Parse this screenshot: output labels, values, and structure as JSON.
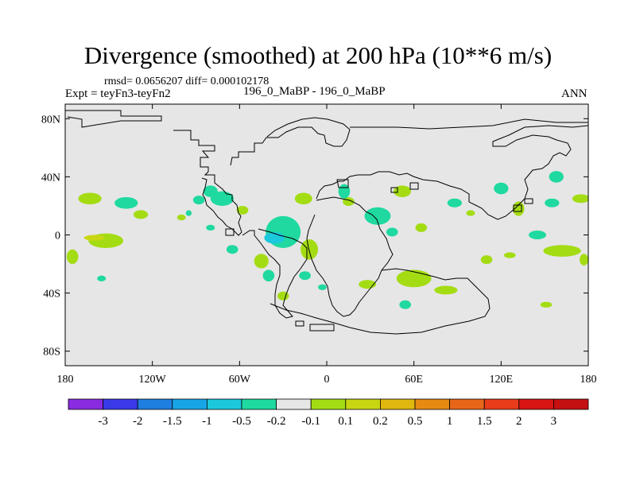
{
  "chart_data": {
    "type": "contour-map",
    "title": "Divergence (smoothed) at 200 hPa (10**6 m/s)",
    "stats": "rmsd= 0.0656207 diff= 0.000102178",
    "left_label": "Expt = teyFn3-teyFn2",
    "center_label": "196_0_MaBP - 196_0_MaBP",
    "right_label": "ANN",
    "lon_range": [
      -180,
      180
    ],
    "lat_range": [
      -90,
      90
    ],
    "x_ticks": [
      {
        "value": -180,
        "label": "180"
      },
      {
        "value": -120,
        "label": "120W"
      },
      {
        "value": -60,
        "label": "60W"
      },
      {
        "value": 0,
        "label": "0"
      },
      {
        "value": 60,
        "label": "60E"
      },
      {
        "value": 120,
        "label": "120E"
      },
      {
        "value": 180,
        "label": "180"
      }
    ],
    "y_ticks": [
      {
        "value": 80,
        "label": "80N"
      },
      {
        "value": 40,
        "label": "40N"
      },
      {
        "value": 0,
        "label": "0"
      },
      {
        "value": -40,
        "label": "40S"
      },
      {
        "value": -80,
        "label": "80S"
      }
    ],
    "colorbar": {
      "colors": [
        "#8a2be2",
        "#3a3ae8",
        "#1f7fe0",
        "#18a5e8",
        "#1cc8dc",
        "#1fd9a0",
        "#e6e6e6",
        "#a4dc14",
        "#c8d614",
        "#e0b70e",
        "#e68a12",
        "#e8661a",
        "#e83c1a",
        "#d81414"
      ],
      "labels": [
        "-3",
        "-2",
        "-1.5",
        "-1",
        "-0.5",
        "-0.2",
        "-0.1",
        "0.1",
        "0.2",
        "0.5",
        "1",
        "1.5",
        "2",
        "3"
      ]
    },
    "background_value_color": "#e6e6e6",
    "coastline_color": "#000000",
    "regions": [
      {
        "level": 0.2,
        "lon": -163,
        "lat": 25,
        "rlon": 8,
        "rlat": 4
      },
      {
        "level": 0.2,
        "lon": -128,
        "lat": 14,
        "rlon": 5,
        "rlat": 3
      },
      {
        "level": 0.2,
        "lon": -152,
        "lat": -4,
        "rlon": 12,
        "rlat": 5
      },
      {
        "level": 0.5,
        "lon": -160,
        "lat": -2,
        "rlon": 7,
        "rlat": 2
      },
      {
        "level": 0.2,
        "lon": -175,
        "lat": -15,
        "rlon": 4,
        "rlat": 5
      },
      {
        "level": -0.2,
        "lon": -155,
        "lat": -30,
        "rlon": 3,
        "rlat": 2
      },
      {
        "level": -0.2,
        "lon": -138,
        "lat": 22,
        "rlon": 8,
        "rlat": 4
      },
      {
        "level": -0.2,
        "lon": -80,
        "lat": 30,
        "rlon": 5,
        "rlat": 4
      },
      {
        "level": -0.2,
        "lon": -72,
        "lat": 25,
        "rlon": 8,
        "rlat": 5
      },
      {
        "level": -0.2,
        "lon": -88,
        "lat": 24,
        "rlon": 4,
        "rlat": 3
      },
      {
        "level": 0.2,
        "lon": -58,
        "lat": 17,
        "rlon": 4,
        "rlat": 3
      },
      {
        "level": -0.2,
        "lon": -80,
        "lat": 5,
        "rlon": 3,
        "rlat": 2
      },
      {
        "level": -0.2,
        "lon": -65,
        "lat": -10,
        "rlon": 4,
        "rlat": 3
      },
      {
        "level": -0.2,
        "lon": -30,
        "lat": 2,
        "rlon": 12,
        "rlat": 11
      },
      {
        "level": -0.5,
        "lon": -36,
        "lat": -2,
        "rlon": 7,
        "rlat": 4
      },
      {
        "level": 0.2,
        "lon": -12,
        "lat": -10,
        "rlon": 6,
        "rlat": 7
      },
      {
        "level": 0.2,
        "lon": -45,
        "lat": -18,
        "rlon": 5,
        "rlat": 5
      },
      {
        "level": -0.2,
        "lon": -40,
        "lat": -28,
        "rlon": 4,
        "rlat": 4
      },
      {
        "level": -0.2,
        "lon": -15,
        "lat": -28,
        "rlon": 4,
        "rlat": 3
      },
      {
        "level": 0.2,
        "lon": -30,
        "lat": -42,
        "rlon": 4,
        "rlat": 3
      },
      {
        "level": -0.2,
        "lon": -3,
        "lat": -36,
        "rlon": 3,
        "rlat": 2
      },
      {
        "level": 0.2,
        "lon": -16,
        "lat": 25,
        "rlon": 6,
        "rlat": 4
      },
      {
        "level": 0.2,
        "lon": 15,
        "lat": 23,
        "rlon": 4,
        "rlat": 3
      },
      {
        "level": -0.2,
        "lon": 12,
        "lat": 30,
        "rlon": 4,
        "rlat": 5
      },
      {
        "level": -0.2,
        "lon": 35,
        "lat": 13,
        "rlon": 9,
        "rlat": 6
      },
      {
        "level": 0.2,
        "lon": 52,
        "lat": 30,
        "rlon": 6,
        "rlat": 4
      },
      {
        "level": -0.2,
        "lon": 45,
        "lat": 2,
        "rlon": 4,
        "rlat": 3
      },
      {
        "level": 0.2,
        "lon": 65,
        "lat": 5,
        "rlon": 4,
        "rlat": 3
      },
      {
        "level": 0.2,
        "lon": 60,
        "lat": -30,
        "rlon": 12,
        "rlat": 6
      },
      {
        "level": 0.2,
        "lon": 28,
        "lat": -34,
        "rlon": 6,
        "rlat": 3
      },
      {
        "level": 0.2,
        "lon": 82,
        "lat": -38,
        "rlon": 8,
        "rlat": 3
      },
      {
        "level": -0.2,
        "lon": 54,
        "lat": -48,
        "rlon": 4,
        "rlat": 3
      },
      {
        "level": -0.2,
        "lon": 88,
        "lat": 22,
        "rlon": 5,
        "rlat": 3
      },
      {
        "level": 0.2,
        "lon": 99,
        "lat": 15,
        "rlon": 3,
        "rlat": 2
      },
      {
        "level": 0.2,
        "lon": 110,
        "lat": -17,
        "rlon": 4,
        "rlat": 3
      },
      {
        "level": -0.2,
        "lon": 120,
        "lat": 32,
        "rlon": 5,
        "rlat": 4
      },
      {
        "level": 0.2,
        "lon": 132,
        "lat": 18,
        "rlon": 4,
        "rlat": 5
      },
      {
        "level": -0.2,
        "lon": 155,
        "lat": 22,
        "rlon": 5,
        "rlat": 3
      },
      {
        "level": -0.2,
        "lon": 158,
        "lat": 40,
        "rlon": 5,
        "rlat": 4
      },
      {
        "level": 0.2,
        "lon": 175,
        "lat": 25,
        "rlon": 6,
        "rlat": 3
      },
      {
        "level": -0.2,
        "lon": 145,
        "lat": 0,
        "rlon": 6,
        "rlat": 3
      },
      {
        "level": 0.2,
        "lon": 162,
        "lat": -11,
        "rlon": 13,
        "rlat": 4
      },
      {
        "level": 0.2,
        "lon": 177,
        "lat": -17,
        "rlon": 3,
        "rlat": 4
      },
      {
        "level": 0.2,
        "lon": 126,
        "lat": -14,
        "rlon": 4,
        "rlat": 2
      },
      {
        "level": 0.2,
        "lon": 151,
        "lat": -48,
        "rlon": 4,
        "rlat": 2
      },
      {
        "level": -0.2,
        "lon": -95,
        "lat": 15,
        "rlon": 2,
        "rlat": 2
      },
      {
        "level": 0.2,
        "lon": -100,
        "lat": 12,
        "rlon": 3,
        "rlat": 2
      }
    ]
  }
}
